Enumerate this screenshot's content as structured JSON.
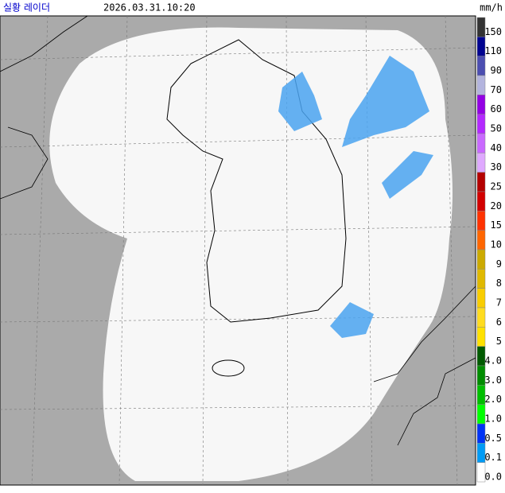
{
  "header": {
    "title": "실황 레이더",
    "time": "2026.03.31.10:20",
    "unit": "mm/h"
  },
  "legend": {
    "items": [
      {
        "label": "150",
        "color": "#333333"
      },
      {
        "label": "110",
        "color": "#000390"
      },
      {
        "label": "90",
        "color": "#4c4eb1"
      },
      {
        "label": "70",
        "color": "#b3b4de"
      },
      {
        "label": "60",
        "color": "#9300e4"
      },
      {
        "label": "50",
        "color": "#b329ff"
      },
      {
        "label": "40",
        "color": "#c969ff"
      },
      {
        "label": "30",
        "color": "#dfa9ff"
      },
      {
        "label": "25",
        "color": "#b40000"
      },
      {
        "label": "20",
        "color": "#d20000"
      },
      {
        "label": "15",
        "color": "#ff3200"
      },
      {
        "label": "10",
        "color": "#ff6600"
      },
      {
        "label": "9",
        "color": "#ccaa00"
      },
      {
        "label": "8",
        "color": "#e0b900"
      },
      {
        "label": "7",
        "color": "#f9cd00"
      },
      {
        "label": "6",
        "color": "#ffdc1f"
      },
      {
        "label": "5",
        "color": "#ffe100"
      },
      {
        "label": "4.0",
        "color": "#005a00"
      },
      {
        "label": "3.0",
        "color": "#008c00"
      },
      {
        "label": "2.0",
        "color": "#00be00"
      },
      {
        "label": "1.0",
        "color": "#00ff00"
      },
      {
        "label": "0.5",
        "color": "#0033f5"
      },
      {
        "label": "0.1",
        "color": "#009bf5"
      },
      {
        "label": "0.0",
        "color": "#ffffff"
      }
    ]
  }
}
